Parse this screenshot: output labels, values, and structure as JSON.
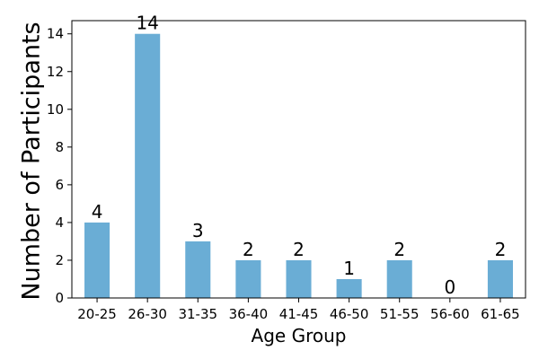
{
  "chart_data": {
    "type": "bar",
    "categories": [
      "20-25",
      "26-30",
      "31-35",
      "36-40",
      "41-45",
      "46-50",
      "51-55",
      "56-60",
      "61-65"
    ],
    "values": [
      4,
      14,
      3,
      2,
      2,
      1,
      2,
      0,
      2
    ],
    "data_labels": [
      "4",
      "14",
      "3",
      "2",
      "2",
      "1",
      "2",
      "0",
      "2"
    ],
    "title": "",
    "xlabel": "Age Group",
    "ylabel": "Number of Participants",
    "ylim": [
      0,
      14.7
    ],
    "yticks": [
      0,
      2,
      4,
      6,
      8,
      10,
      12,
      14
    ],
    "ytick_labels": [
      "0",
      "2",
      "4",
      "6",
      "8",
      "10",
      "12",
      "14"
    ],
    "bar_color": "#6aadd5",
    "grid": false,
    "legend": "none"
  }
}
